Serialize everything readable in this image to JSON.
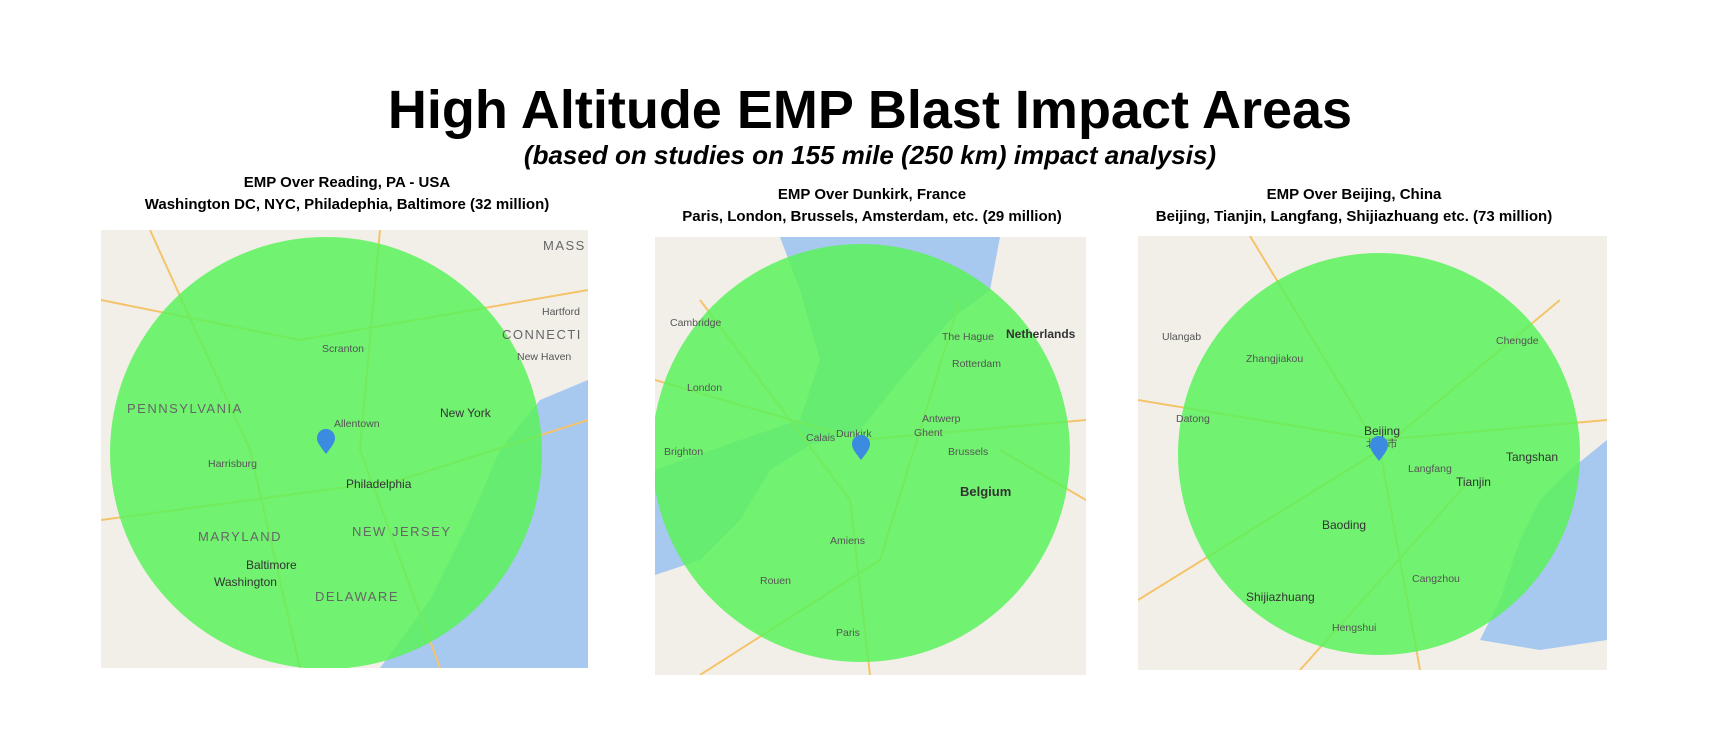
{
  "title": "High Altitude EMP Blast Impact Areas",
  "subtitle": "(based on studies on 155 mile (250 km) impact analysis)",
  "panels": [
    {
      "caption": [
        "EMP Over Reading, PA - USA",
        "Washington DC, NYC, Philadephia, Baltimore (32 million)"
      ],
      "labels": [
        "PENNSYLVANIA",
        "New York",
        "Allentown",
        "Philadelphia",
        "MARYLAND",
        "NEW JERSEY",
        "Baltimore",
        "Washington",
        "DELAWARE",
        "Harrisburg",
        "Scranton",
        "Hartford",
        "New Haven",
        "CONNECTI",
        "MASS"
      ]
    },
    {
      "caption": [
        "EMP Over Dunkirk, France",
        "Paris, London, Brussels, Amsterdam, etc. (29 million)"
      ],
      "labels": [
        "London",
        "Netherlands",
        "The Hague",
        "Rotterdam",
        "Antwerp",
        "Ghent",
        "Brussels",
        "Belgium",
        "Paris",
        "Amiens",
        "Brighton",
        "Dunkirk",
        "Calais",
        "Rouen",
        "Cambridge"
      ]
    },
    {
      "caption": [
        "EMP Over Beijing, China",
        "Beijing, Tianjin, Langfang, Shijiazhuang etc. (73 million)"
      ],
      "labels": [
        "Beijing",
        "北京市",
        "Zhangjiakou",
        "Tangshan",
        "Tianjin",
        "Langfang",
        "Baoding",
        "Shijiazhuang",
        "Datong",
        "Ulangab",
        "Chengde",
        "Cangzhou",
        "Hengshui"
      ]
    }
  ]
}
